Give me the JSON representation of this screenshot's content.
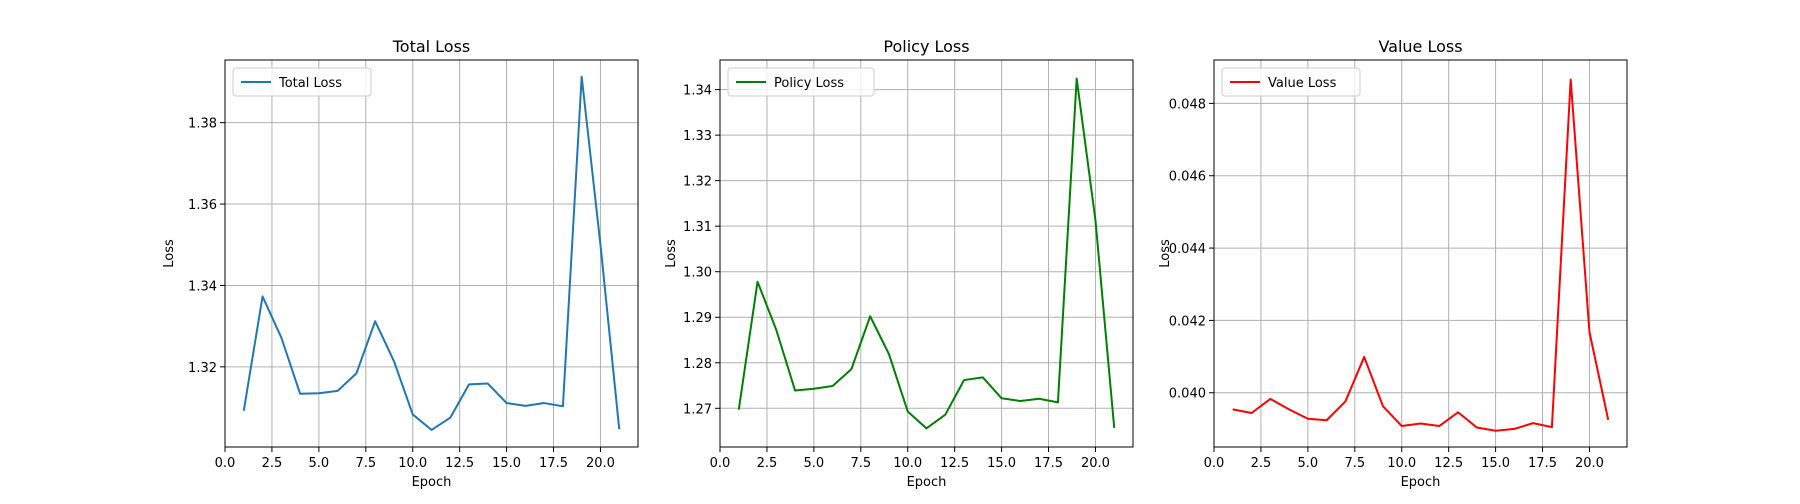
{
  "chart_data": [
    {
      "type": "line",
      "title": "Total Loss",
      "xlabel": "Epoch",
      "ylabel": "Loss",
      "xlim": [
        0,
        22
      ],
      "ylim": [
        1.3003,
        1.3954
      ],
      "xticks": [
        "0.0",
        "2.5",
        "5.0",
        "7.5",
        "10.0",
        "12.5",
        "15.0",
        "17.5",
        "20.0"
      ],
      "yticks": [
        "1.32",
        "1.34",
        "1.36",
        "1.38"
      ],
      "grid": true,
      "legend_position": "upper-left",
      "series": [
        {
          "name": "Total Loss",
          "color": "#1f77b4",
          "x": [
            1,
            2,
            3,
            4,
            5,
            6,
            7,
            8,
            9,
            10,
            11,
            12,
            13,
            14,
            15,
            16,
            17,
            18,
            19,
            20,
            21
          ],
          "values": [
            1.3092,
            1.3373,
            1.3272,
            1.3134,
            1.3135,
            1.3141,
            1.3184,
            1.3312,
            1.3214,
            1.3083,
            1.3045,
            1.3075,
            1.3157,
            1.3159,
            1.3111,
            1.3104,
            1.3111,
            1.3103,
            1.3913,
            1.35,
            1.3047
          ]
        }
      ]
    },
    {
      "type": "line",
      "title": "Policy Loss",
      "xlabel": "Epoch",
      "ylabel": "Loss",
      "xlim": [
        0,
        22
      ],
      "ylim": [
        1.2615,
        1.3465
      ],
      "xticks": [
        "0.0",
        "2.5",
        "5.0",
        "7.5",
        "10.0",
        "12.5",
        "15.0",
        "17.5",
        "20.0"
      ],
      "yticks": [
        "1.27",
        "1.28",
        "1.29",
        "1.30",
        "1.31",
        "1.32",
        "1.33",
        "1.34"
      ],
      "grid": true,
      "legend_position": "upper-left",
      "series": [
        {
          "name": "Policy Loss",
          "color": "#008000",
          "x": [
            1,
            2,
            3,
            4,
            5,
            6,
            7,
            8,
            9,
            10,
            11,
            12,
            13,
            14,
            15,
            16,
            17,
            18,
            19,
            20,
            21
          ],
          "values": [
            1.2697,
            1.2978,
            1.2872,
            1.2739,
            1.2743,
            1.2749,
            1.2786,
            1.2902,
            1.2819,
            1.2693,
            1.2656,
            1.2686,
            1.2762,
            1.2768,
            1.2722,
            1.2716,
            1.2721,
            1.2713,
            1.3424,
            1.3113,
            1.2657
          ]
        }
      ]
    },
    {
      "type": "line",
      "title": "Value Loss",
      "xlabel": "Epoch",
      "ylabel": "Loss",
      "xlim": [
        0,
        22
      ],
      "ylim": [
        0.0385,
        0.0492
      ],
      "xticks": [
        "0.0",
        "2.5",
        "5.0",
        "7.5",
        "10.0",
        "12.5",
        "15.0",
        "17.5",
        "20.0"
      ],
      "yticks": [
        "0.040",
        "0.042",
        "0.044",
        "0.046",
        "0.048"
      ],
      "grid": true,
      "legend_position": "upper-left",
      "series": [
        {
          "name": "Value Loss",
          "color": "#ff0000",
          "x": [
            1,
            2,
            3,
            4,
            5,
            6,
            7,
            8,
            9,
            10,
            11,
            12,
            13,
            14,
            15,
            16,
            17,
            18,
            19,
            20,
            21
          ],
          "values": [
            0.03954,
            0.03944,
            0.03983,
            0.03954,
            0.03928,
            0.03924,
            0.03976,
            0.04099,
            0.03963,
            0.03908,
            0.03915,
            0.03908,
            0.03946,
            0.03904,
            0.03895,
            0.039,
            0.03916,
            0.03905,
            0.04866,
            0.04168,
            0.03925
          ]
        }
      ]
    }
  ]
}
